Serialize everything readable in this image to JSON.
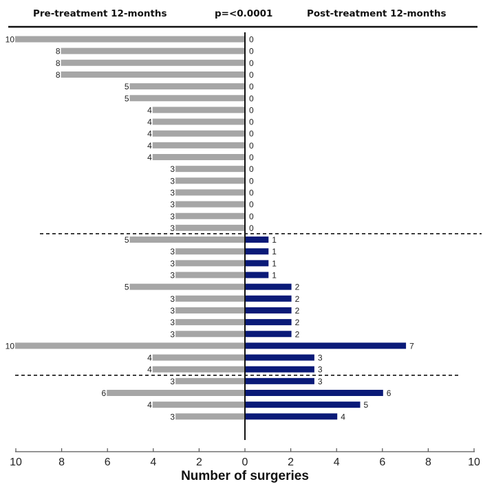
{
  "chart_data": {
    "type": "bar",
    "orientation": "horizontal-back-to-back",
    "left_header": "Pre-treatment 12-months",
    "center_header": "p=<0.0001",
    "right_header": "Post-treatment 12-months",
    "xlabel": "Number of surgeries",
    "xlim": [
      -10,
      10
    ],
    "x_ticks": [
      10,
      8,
      6,
      4,
      2,
      0,
      2,
      4,
      6,
      8,
      10
    ],
    "pre": [
      10,
      8,
      8,
      8,
      5,
      5,
      4,
      4,
      4,
      4,
      4,
      3,
      3,
      3,
      3,
      3,
      3,
      5,
      3,
      3,
      3,
      5,
      3,
      3,
      3,
      3,
      10,
      4,
      4,
      3,
      6,
      4,
      3
    ],
    "post": [
      0,
      0,
      0,
      0,
      0,
      0,
      0,
      0,
      0,
      0,
      0,
      0,
      0,
      0,
      0,
      0,
      0,
      1,
      1,
      1,
      1,
      2,
      2,
      2,
      2,
      2,
      7,
      3,
      3,
      3,
      6,
      5,
      4
    ],
    "dividers_after_row": [
      16,
      28
    ],
    "colors": {
      "pre": "#a6a6a6",
      "post": "#0a1a78"
    }
  }
}
